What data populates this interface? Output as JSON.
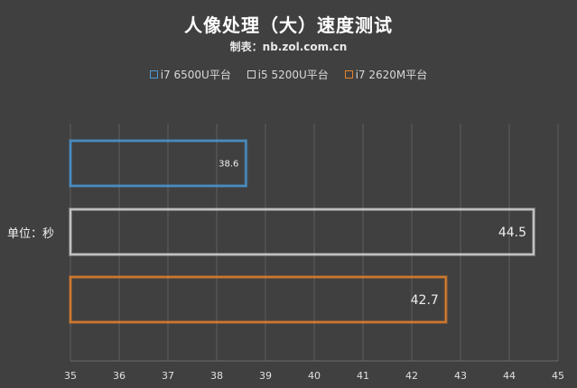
{
  "chart_data": {
    "type": "bar",
    "orientation": "horizontal",
    "title": "人像处理（大）速度测试",
    "subtitle": "制表：nb.zol.com.cn",
    "ylabel": "单位：秒",
    "xlim": [
      35,
      45
    ],
    "xticks": [
      35,
      36,
      37,
      38,
      39,
      40,
      41,
      42,
      43,
      44,
      45
    ],
    "grid": true,
    "legend_position": "top",
    "series": [
      {
        "name": "i7 6500U平台",
        "value": 38.6,
        "color": "#4a9ad8"
      },
      {
        "name": "i5 5200U平台",
        "value": 44.5,
        "color": "#d9d9d9"
      },
      {
        "name": "i7 2620M平台",
        "value": 42.7,
        "color": "#e8822a"
      }
    ]
  }
}
